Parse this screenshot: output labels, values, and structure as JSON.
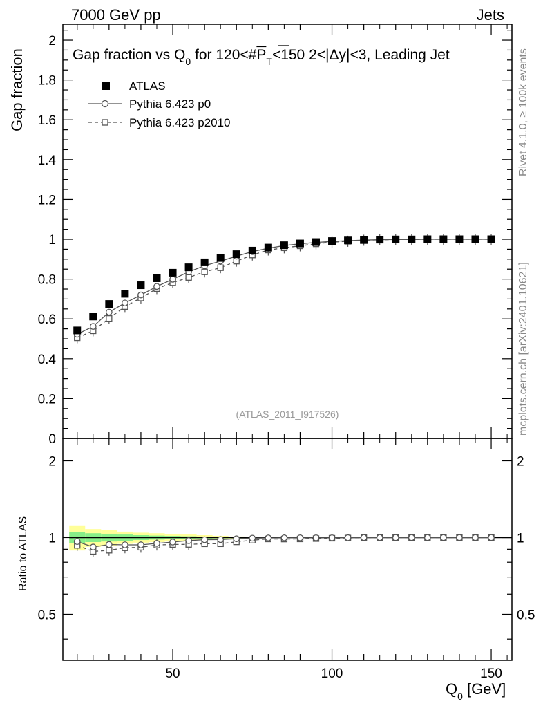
{
  "header": {
    "left": "7000 GeV pp",
    "right": "Jets"
  },
  "side_labels": {
    "rivet": "Rivet 4.1.0, ≥ 100k events",
    "mcplots": "mcplots.cern.ch [arXiv:2401.10621]"
  },
  "chart_data": {
    "type": "scatter",
    "title_parts": {
      "a": "Gap fraction vs Q",
      "a_sub": "0",
      "b": " for 120<#",
      "c": "P",
      "c_sub": "T",
      "d": "<150  2<|Δy|<3, Leading Jet"
    },
    "analysis_tag": "(ATLAS_2011_I917526)",
    "xlabel": "Q",
    "xlabel_sub": "0",
    "xlabel_unit": " [GeV]",
    "ylabel": "Gap fraction",
    "ratio_ylabel": "Ratio to ATLAS",
    "xlim": [
      15.5,
      156.5
    ],
    "ylim": [
      0,
      2.08
    ],
    "ratio_ylim": [
      0.33,
      2.45
    ],
    "x_ticks": [
      "50",
      "100",
      "150"
    ],
    "y_ticks": [
      "0",
      "0.2",
      "0.4",
      "0.6",
      "0.8",
      "1",
      "1.2",
      "1.4",
      "1.6",
      "1.8",
      "2"
    ],
    "ratio_y_ticks": [
      "0.5",
      "1",
      "2"
    ],
    "x": [
      20,
      25,
      30,
      35,
      40,
      45,
      50,
      55,
      60,
      65,
      70,
      75,
      80,
      85,
      90,
      95,
      100,
      105,
      110,
      115,
      120,
      125,
      130,
      135,
      140,
      145,
      150
    ],
    "legend": {
      "atlas": "ATLAS",
      "p0": "Pythia 6.423 p0",
      "p2010": "Pythia 6.423 p2010"
    },
    "series": [
      {
        "name": "ATLAS",
        "style": "filled-square",
        "values": [
          0.542,
          0.612,
          0.675,
          0.726,
          0.769,
          0.804,
          0.832,
          0.859,
          0.884,
          0.906,
          0.925,
          0.943,
          0.958,
          0.97,
          0.979,
          0.986,
          0.991,
          0.994,
          0.996,
          0.998,
          0.999,
          0.999,
          1.0,
          1.0,
          1.0,
          1.0,
          1.0
        ]
      },
      {
        "name": "Pythia 6.423 p0",
        "style": "open-circle-solid",
        "values": [
          0.523,
          0.562,
          0.634,
          0.68,
          0.72,
          0.763,
          0.799,
          0.836,
          0.867,
          0.89,
          0.915,
          0.938,
          0.955,
          0.968,
          0.977,
          0.984,
          0.989,
          0.993,
          0.996,
          0.998,
          0.999,
          0.999,
          1.0,
          1.0,
          1.0,
          1.0,
          1.0
        ]
      },
      {
        "name": "Pythia 6.423 p2010",
        "style": "open-square-dashed",
        "values": [
          0.505,
          0.54,
          0.602,
          0.662,
          0.705,
          0.752,
          0.782,
          0.808,
          0.836,
          0.857,
          0.89,
          0.921,
          0.946,
          0.957,
          0.967,
          0.977,
          0.985,
          0.99,
          0.995,
          0.997,
          0.999,
          0.999,
          1.0,
          1.0,
          1.0,
          1.0,
          1.0
        ]
      }
    ],
    "band_bins": {
      "x_edges": [
        17.5,
        22.5,
        27.5,
        32.5,
        37.5,
        42.5,
        47.5,
        52.5,
        57.5,
        62.5,
        67.5,
        72.5
      ],
      "outer_halfwidth": [
        0.11,
        0.08,
        0.07,
        0.055,
        0.045,
        0.04,
        0.035,
        0.028,
        0.022,
        0.016,
        0.01
      ],
      "inner_halfwidth": [
        0.05,
        0.04,
        0.035,
        0.028,
        0.022,
        0.018,
        0.015,
        0.012,
        0.009,
        0.007,
        0.005
      ]
    },
    "colors": {
      "atlas": "#000000",
      "mc": "#555555",
      "band_outer": "#ffff99",
      "band_inner": "#88ee88",
      "tag": "#999999",
      "side": "#888888"
    }
  }
}
